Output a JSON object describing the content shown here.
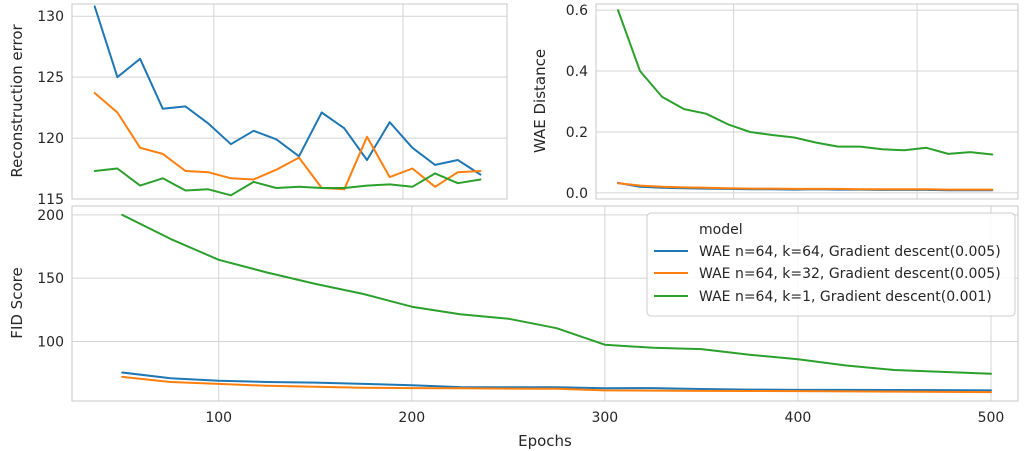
{
  "colors": {
    "blue": "#1f77b4",
    "orange": "#ff7f0e",
    "green": "#2ca02c"
  },
  "legend": {
    "title": "model",
    "placement": "top-right of bottom panel",
    "entries": [
      "WAE n=64, k=64, Gradient descent(0.005)",
      "WAE n=64, k=32, Gradient descent(0.005)",
      "WAE n=64, k=1, Gradient descent(0.001)"
    ]
  },
  "chart_data": [
    {
      "type": "line",
      "panel": "top-left",
      "title": "",
      "xlabel": "",
      "ylabel": "Reconstruction error",
      "ylim": [
        115,
        131
      ],
      "yticks": [
        115,
        120,
        125,
        130
      ],
      "xlim": [
        25,
        255
      ],
      "grid": true,
      "series": [
        {
          "name": "WAE n=64, k=64, Gradient descent(0.005)",
          "color": "#1f77b4",
          "x": [
            37,
            49,
            61,
            73,
            85,
            97,
            109,
            121,
            133,
            145,
            157,
            169,
            181,
            193,
            205,
            217,
            229,
            241
          ],
          "y": [
            130.8,
            125.0,
            126.5,
            122.4,
            122.6,
            121.2,
            119.5,
            120.6,
            119.9,
            118.5,
            122.1,
            120.8,
            118.2,
            121.3,
            119.2,
            117.8,
            118.2,
            117.0
          ]
        },
        {
          "name": "WAE n=64, k=32, Gradient descent(0.005)",
          "color": "#ff7f0e",
          "x": [
            37,
            49,
            61,
            73,
            85,
            97,
            109,
            121,
            133,
            145,
            157,
            169,
            181,
            193,
            205,
            217,
            229,
            241
          ],
          "y": [
            123.7,
            122.1,
            119.2,
            118.7,
            117.3,
            117.2,
            116.7,
            116.6,
            117.4,
            118.4,
            115.9,
            115.8,
            120.1,
            116.8,
            117.5,
            116.0,
            117.2,
            117.3
          ]
        },
        {
          "name": "WAE n=64, k=1, Gradient descent(0.001)",
          "color": "#2ca02c",
          "x": [
            37,
            49,
            61,
            73,
            85,
            97,
            109,
            121,
            133,
            145,
            157,
            169,
            181,
            193,
            205,
            217,
            229,
            241
          ],
          "y": [
            117.3,
            117.5,
            116.1,
            116.7,
            115.7,
            115.8,
            115.3,
            116.4,
            115.9,
            116.0,
            115.9,
            115.9,
            116.1,
            116.2,
            116.0,
            117.1,
            116.3,
            116.6
          ]
        }
      ]
    },
    {
      "type": "line",
      "panel": "top-right",
      "title": "",
      "xlabel": "",
      "ylabel": "WAE Distance",
      "ylim": [
        -0.02,
        0.62
      ],
      "yticks": [
        0.0,
        0.2,
        0.4,
        0.6
      ],
      "yticklabels": [
        "0.0",
        "0.2",
        "0.4",
        "0.6"
      ],
      "xlim": [
        25,
        255
      ],
      "grid": true,
      "series": [
        {
          "name": "WAE n=64, k=64, Gradient descent(0.005)",
          "color": "#1f77b4",
          "x": [
            37,
            49,
            61,
            73,
            85,
            97,
            109,
            121,
            133,
            145,
            157,
            169,
            181,
            193,
            205,
            217,
            229,
            241
          ],
          "y": [
            0.033,
            0.02,
            0.017,
            0.015,
            0.014,
            0.013,
            0.012,
            0.012,
            0.011,
            0.012,
            0.011,
            0.011,
            0.01,
            0.01,
            0.01,
            0.009,
            0.009,
            0.009
          ]
        },
        {
          "name": "WAE n=64, k=32, Gradient descent(0.005)",
          "color": "#ff7f0e",
          "x": [
            37,
            49,
            61,
            73,
            85,
            97,
            109,
            121,
            133,
            145,
            157,
            169,
            181,
            193,
            205,
            217,
            229,
            241
          ],
          "y": [
            0.032,
            0.024,
            0.02,
            0.018,
            0.017,
            0.015,
            0.014,
            0.014,
            0.013,
            0.013,
            0.013,
            0.012,
            0.012,
            0.012,
            0.012,
            0.011,
            0.011,
            0.011
          ]
        },
        {
          "name": "WAE n=64, k=1, Gradient descent(0.001)",
          "color": "#2ca02c",
          "x": [
            37,
            49,
            61,
            73,
            85,
            97,
            109,
            121,
            133,
            145,
            157,
            169,
            181,
            193,
            205,
            217,
            229,
            241
          ],
          "y": [
            0.6,
            0.4,
            0.315,
            0.275,
            0.26,
            0.225,
            0.2,
            0.19,
            0.182,
            0.165,
            0.152,
            0.152,
            0.143,
            0.14,
            0.148,
            0.128,
            0.134,
            0.126
          ]
        }
      ]
    },
    {
      "type": "line",
      "panel": "bottom",
      "title": "",
      "xlabel": "Epochs",
      "ylabel": "FID Score",
      "xlim": [
        24,
        514
      ],
      "xticks": [
        100,
        200,
        300,
        400,
        500
      ],
      "ylim": [
        53,
        207
      ],
      "yticks": [
        100,
        150,
        200
      ],
      "grid": true,
      "series": [
        {
          "name": "WAE n=64, k=64, Gradient descent(0.005)",
          "color": "#1f77b4",
          "x": [
            50,
            75,
            100,
            125,
            150,
            175,
            200,
            225,
            250,
            275,
            300,
            325,
            350,
            375,
            400,
            425,
            450,
            475,
            500
          ],
          "y": [
            75.5,
            71.0,
            69.0,
            68.0,
            67.5,
            66.5,
            65.5,
            64.0,
            63.8,
            63.8,
            63.0,
            63.2,
            62.5,
            62.0,
            61.8,
            61.8,
            61.7,
            61.6,
            61.4
          ]
        },
        {
          "name": "WAE n=64, k=32, Gradient descent(0.005)",
          "color": "#ff7f0e",
          "x": [
            50,
            75,
            100,
            125,
            150,
            175,
            200,
            225,
            250,
            275,
            300,
            325,
            350,
            375,
            400,
            425,
            450,
            475,
            500
          ],
          "y": [
            72.0,
            68.0,
            66.5,
            65.0,
            64.2,
            63.5,
            63.2,
            63.0,
            62.8,
            62.6,
            61.4,
            61.2,
            61.0,
            60.9,
            60.8,
            60.6,
            60.4,
            60.2,
            60.0
          ]
        },
        {
          "name": "WAE n=64, k=1, Gradient descent(0.001)",
          "color": "#2ca02c",
          "x": [
            50,
            75,
            100,
            125,
            150,
            175,
            200,
            225,
            250,
            275,
            300,
            325,
            350,
            375,
            400,
            425,
            450,
            475,
            500
          ],
          "y": [
            200.0,
            181.0,
            164.5,
            154.5,
            145.5,
            137.5,
            127.5,
            121.5,
            118.0,
            110.5,
            97.5,
            95.0,
            94.0,
            89.5,
            86.0,
            81.0,
            77.5,
            76.0,
            74.5
          ]
        }
      ]
    }
  ]
}
